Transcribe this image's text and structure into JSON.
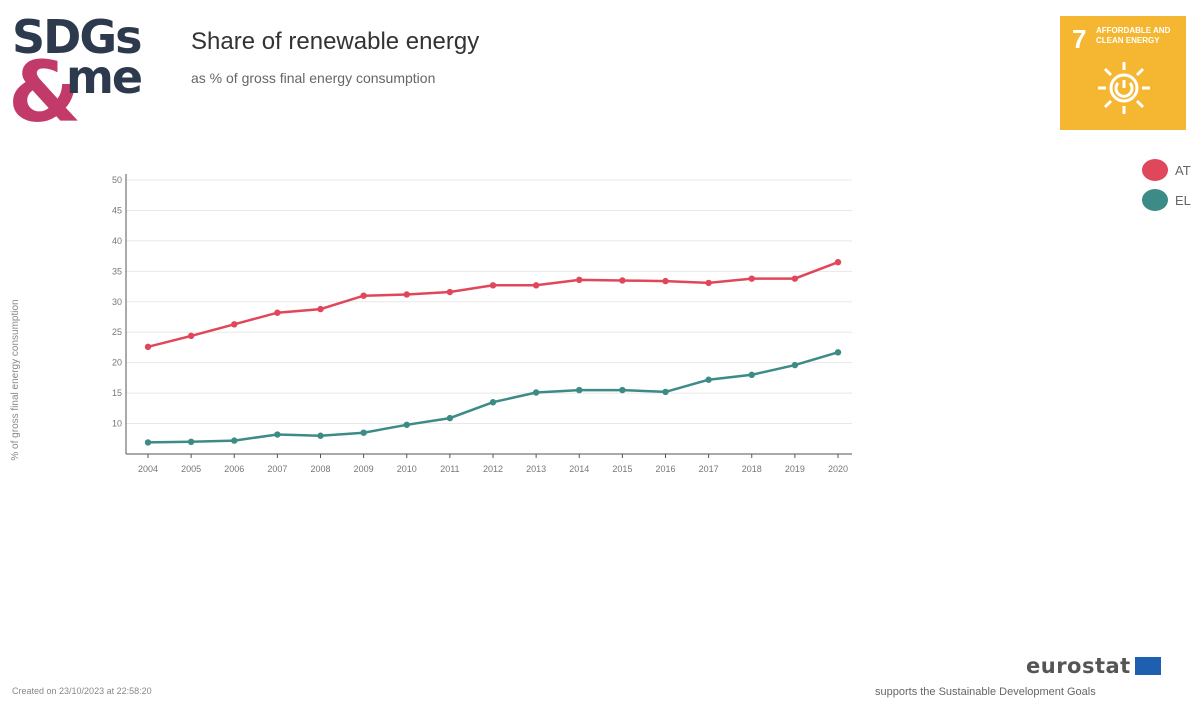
{
  "header": {
    "logo_top": "SDGs",
    "logo_amp": "&",
    "logo_bottom": "me",
    "title": "Share of renewable energy",
    "subtitle": "as % of gross final energy consumption"
  },
  "goal_badge": {
    "number": "7",
    "label": "Affordable and clean energy",
    "color": "#f5b731",
    "icon": "sun-power-icon"
  },
  "legend": [
    {
      "label": "AT",
      "color": "#e0475a"
    },
    {
      "label": "EL",
      "color": "#3d8b86"
    }
  ],
  "chart_data": {
    "type": "line",
    "title": "Share of renewable energy",
    "subtitle": "as % of gross final energy consumption",
    "xlabel": "",
    "ylabel": "% of gross final energy consumption",
    "categories": [
      "2004",
      "2005",
      "2006",
      "2007",
      "2008",
      "2009",
      "2010",
      "2011",
      "2012",
      "2013",
      "2014",
      "2015",
      "2016",
      "2017",
      "2018",
      "2019",
      "2020"
    ],
    "yticks": [
      "10",
      "15",
      "20",
      "25",
      "30",
      "35",
      "40",
      "45",
      "50"
    ],
    "ylim": [
      5,
      50
    ],
    "grid": true,
    "legend_position": "right",
    "series": [
      {
        "name": "AT",
        "color": "#e0475a",
        "values": [
          22.6,
          24.4,
          26.3,
          28.2,
          28.8,
          31.0,
          31.2,
          31.6,
          32.7,
          32.7,
          33.6,
          33.5,
          33.4,
          33.1,
          33.8,
          33.8,
          36.5
        ]
      },
      {
        "name": "EL",
        "color": "#3d8b86",
        "values": [
          6.9,
          7.0,
          7.2,
          8.2,
          8.0,
          8.5,
          9.8,
          10.9,
          13.5,
          15.1,
          15.5,
          15.5,
          15.2,
          17.2,
          18.0,
          19.6,
          21.7
        ]
      }
    ]
  },
  "footer": {
    "created": "Created on 23/10/2023 at 22:58:20",
    "brand": "eurostat",
    "tagline": "supports the Sustainable Development Goals"
  }
}
